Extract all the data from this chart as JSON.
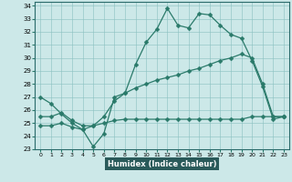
{
  "xlabel": "Humidex (Indice chaleur)",
  "xlim": [
    -0.5,
    23.5
  ],
  "ylim": [
    23,
    34.3
  ],
  "xticks": [
    0,
    1,
    2,
    3,
    4,
    5,
    6,
    7,
    8,
    9,
    10,
    11,
    12,
    13,
    14,
    15,
    16,
    17,
    18,
    19,
    20,
    21,
    22,
    23
  ],
  "yticks": [
    23,
    24,
    25,
    26,
    27,
    28,
    29,
    30,
    31,
    32,
    33,
    34
  ],
  "line_color": "#2a7a6a",
  "bg_color": "#cce8e8",
  "xlabel_bg": "#2a5a5a",
  "line1_x": [
    0,
    1,
    2,
    3,
    4,
    5,
    6,
    7,
    8,
    9,
    10,
    11,
    12,
    13,
    14,
    15,
    16,
    17,
    18,
    19,
    20,
    21,
    22,
    23
  ],
  "line1_y": [
    27.0,
    26.5,
    25.7,
    25.0,
    24.5,
    23.2,
    24.2,
    27.0,
    27.3,
    29.5,
    31.2,
    32.2,
    33.8,
    32.5,
    32.3,
    33.4,
    33.3,
    32.5,
    31.8,
    31.5,
    29.8,
    27.8,
    25.3,
    25.5
  ],
  "line2_x": [
    0,
    1,
    2,
    3,
    4,
    5,
    6,
    7,
    8,
    9,
    10,
    11,
    12,
    13,
    14,
    15,
    16,
    17,
    18,
    19,
    20,
    21,
    22,
    23
  ],
  "line2_y": [
    25.5,
    25.5,
    25.8,
    25.2,
    24.8,
    24.8,
    25.5,
    26.7,
    27.3,
    27.7,
    28.0,
    28.3,
    28.5,
    28.7,
    29.0,
    29.2,
    29.5,
    29.8,
    30.0,
    30.3,
    30.0,
    28.0,
    25.5,
    25.5
  ],
  "line3_x": [
    0,
    1,
    2,
    3,
    4,
    5,
    6,
    7,
    8,
    9,
    10,
    11,
    12,
    13,
    14,
    15,
    16,
    17,
    18,
    19,
    20,
    21,
    22,
    23
  ],
  "line3_y": [
    24.8,
    24.8,
    25.0,
    24.7,
    24.5,
    24.8,
    25.0,
    25.2,
    25.3,
    25.3,
    25.3,
    25.3,
    25.3,
    25.3,
    25.3,
    25.3,
    25.3,
    25.3,
    25.3,
    25.3,
    25.5,
    25.5,
    25.5,
    25.5
  ],
  "markersize": 2.5
}
